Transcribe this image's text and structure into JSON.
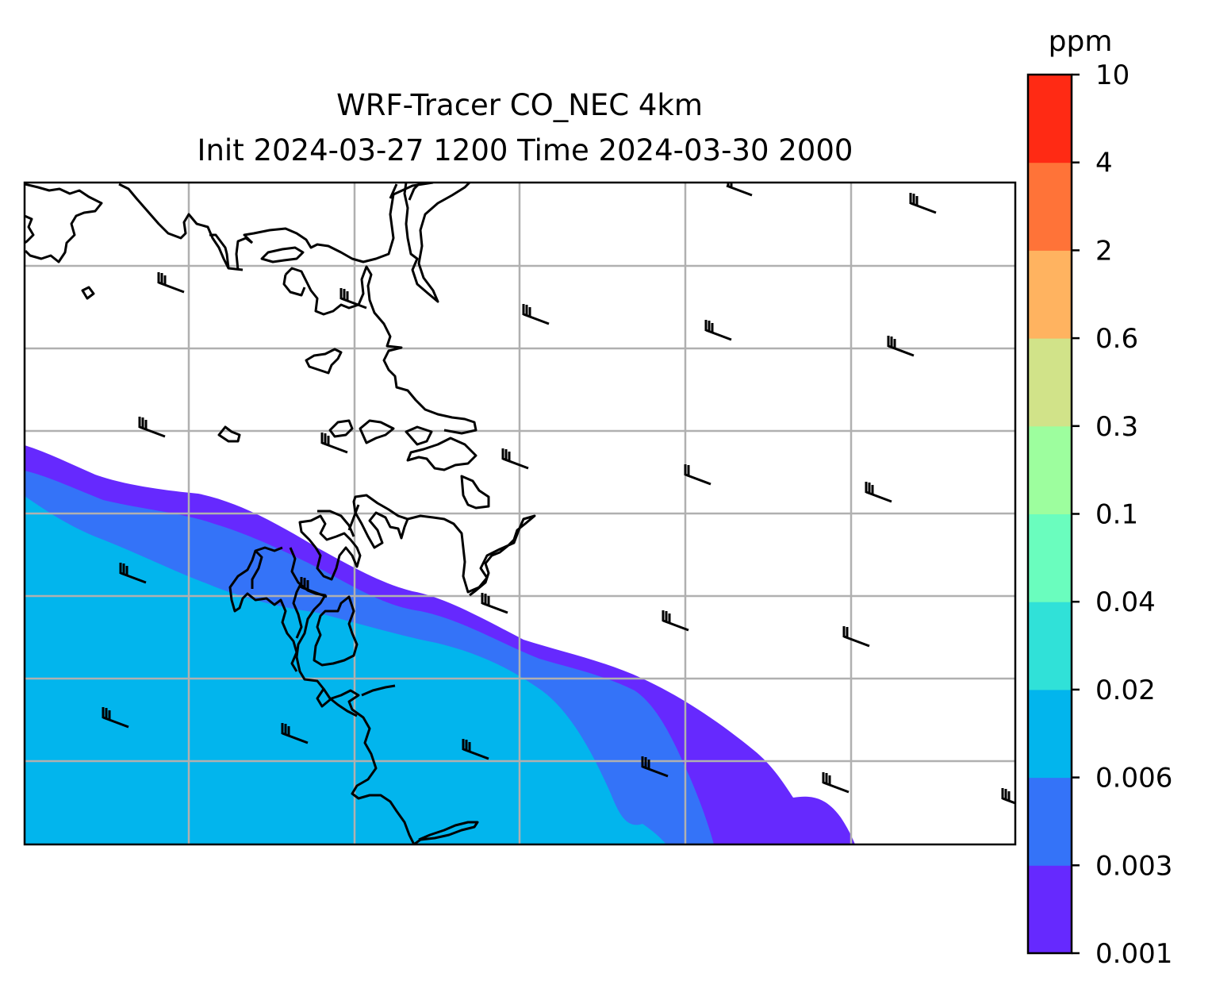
{
  "title": {
    "line1": "WRF-Tracer CO_NEC 4km",
    "line2": "Init 2024-03-27 1200 Time 2024-03-30 2000"
  },
  "colorbar": {
    "unit": "ppm",
    "levels": [
      "0.001",
      "0.003",
      "0.006",
      "0.02",
      "0.04",
      "0.1",
      "0.3",
      "0.6",
      "2",
      "4",
      "10"
    ],
    "colors": [
      "#6629fe",
      "#3473f8",
      "#02b5ed",
      "#30e1d8",
      "#6afdbe",
      "#9dfe9e",
      "#d1e389",
      "#ffb360",
      "#ff7338",
      "#ff2a14"
    ]
  },
  "map": {
    "gridlines": true,
    "gridline_color": "#b0b0b0",
    "coastline_color": "#000000",
    "wind_barbs": true
  }
}
